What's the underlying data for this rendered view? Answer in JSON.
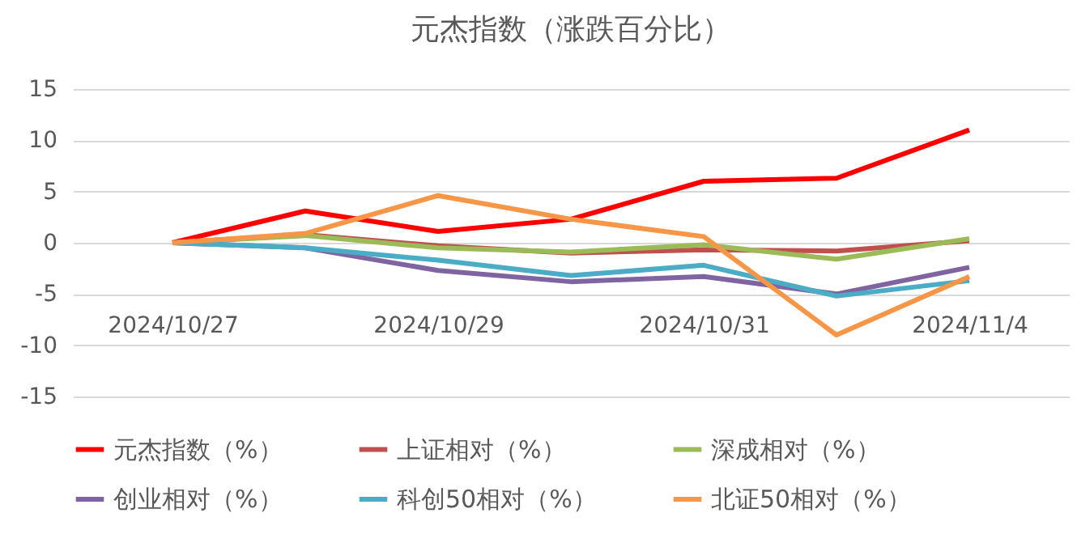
{
  "chart_data": {
    "type": "line",
    "title": "元杰指数（涨跌百分比）",
    "categories": [
      "2024/10/27",
      null,
      "2024/10/29",
      null,
      "2024/10/31",
      null,
      "2024/11/4"
    ],
    "ylim": [
      -15,
      15
    ],
    "yticks": [
      -15,
      -10,
      -5,
      0,
      5,
      10,
      15
    ],
    "grid": "y",
    "legend": "bottom",
    "series": [
      {
        "name": "元杰指数（%）",
        "color": "#ff0000",
        "values": [
          0,
          3.1,
          1.1,
          2.3,
          6.0,
          6.3,
          11.0
        ]
      },
      {
        "name": "上证相对（%）",
        "color": "#c0504d",
        "values": [
          0,
          0.8,
          -0.3,
          -1.0,
          -0.7,
          -0.8,
          0.2
        ]
      },
      {
        "name": "深成相对（%）",
        "color": "#9bbb59",
        "values": [
          0,
          0.7,
          -0.5,
          -0.9,
          -0.2,
          -1.6,
          0.4
        ]
      },
      {
        "name": "创业相对（%）",
        "color": "#8064a2",
        "values": [
          0,
          -0.5,
          -2.7,
          -3.8,
          -3.3,
          -5.0,
          -2.4
        ]
      },
      {
        "name": "科创50相对（%）",
        "color": "#4bacc6",
        "values": [
          0,
          -0.5,
          -1.7,
          -3.2,
          -2.2,
          -5.2,
          -3.7
        ]
      },
      {
        "name": "北证50相对（%）",
        "color": "#f79646",
        "values": [
          0,
          0.9,
          4.6,
          2.3,
          0.6,
          -9.0,
          -3.3
        ]
      }
    ]
  }
}
